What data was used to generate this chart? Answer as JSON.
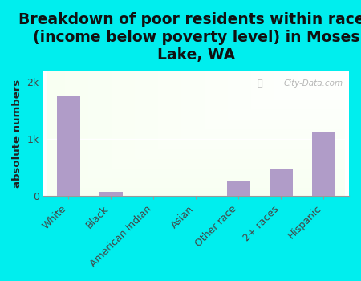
{
  "title": "Breakdown of poor residents within races\n(income below poverty level) in Moses\nLake, WA",
  "categories": [
    "White",
    "Black",
    "American Indian",
    "Asian",
    "Other race",
    "2+ races",
    "Hispanic"
  ],
  "values": [
    1750,
    70,
    10,
    12,
    270,
    490,
    1130
  ],
  "bar_color": "#b09cc8",
  "ylabel": "absolute numbers",
  "ylim": [
    0,
    2200
  ],
  "ytick_labels": [
    "0",
    "1k",
    "2k"
  ],
  "ytick_values": [
    0,
    1000,
    2000
  ],
  "background_color": "#00eeee",
  "title_fontsize": 13.5,
  "axis_label_fontsize": 9.5,
  "tick_fontsize": 9,
  "watermark": "City-Data.com"
}
